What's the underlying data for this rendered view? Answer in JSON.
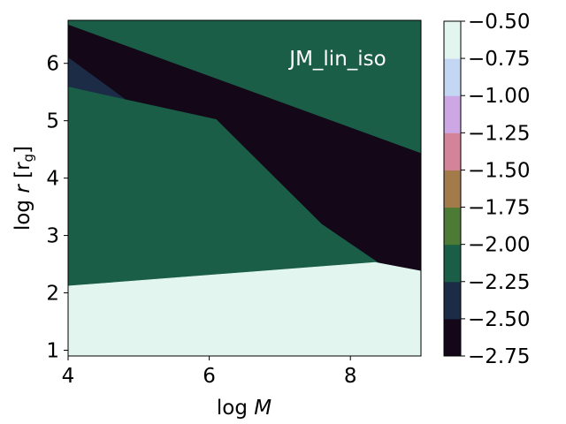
{
  "chart_data": {
    "type": "contour",
    "annotation": "JM_lin_iso",
    "xlabel": {
      "prefix": "log ",
      "var": "M"
    },
    "ylabel": {
      "prefix": "log ",
      "var": "r",
      "unit_open": " [r",
      "unit_sub": "g",
      "unit_close": "]"
    },
    "xlim": [
      4,
      9
    ],
    "ylim": [
      0.9,
      6.75
    ],
    "xticks": [
      4,
      6,
      8
    ],
    "yticks": [
      1,
      2,
      3,
      4,
      5,
      6
    ],
    "xtick_labels": [
      "4",
      "6",
      "8"
    ],
    "ytick_labels": [
      "1",
      "2",
      "3",
      "4",
      "5",
      "6"
    ],
    "colorbar": {
      "levels": [
        -2.75,
        -2.5,
        -2.25,
        -2.0,
        -1.75,
        -1.5,
        -1.25,
        -1.0,
        -0.75,
        -0.5
      ],
      "labels": [
        "−2.75",
        "−2.50",
        "−2.25",
        "−2.00",
        "−1.75",
        "−1.50",
        "−1.25",
        "−1.00",
        "−0.75",
        "−0.50"
      ],
      "colors": [
        "#140818",
        "#1c2c47",
        "#1a5e47",
        "#4d7a34",
        "#a37b4b",
        "#d3849a",
        "#cda7e4",
        "#c3d6f2",
        "#e3f5ef"
      ]
    },
    "regions": [
      {
        "band": "-2.25 to -2.00",
        "color": "#1a5e47",
        "polygon": [
          [
            4,
            0.9
          ],
          [
            9,
            0.9
          ],
          [
            9,
            6.75
          ],
          [
            4,
            6.75
          ]
        ]
      },
      {
        "band": "-2.75 to -2.50",
        "color": "#140818",
        "polygon": [
          [
            4,
            6.67
          ],
          [
            9,
            4.43
          ],
          [
            9,
            2.38
          ],
          [
            8.4,
            2.53
          ],
          [
            7.6,
            3.2
          ],
          [
            6.1,
            5.03
          ],
          [
            4.8,
            5.38
          ],
          [
            4,
            6.1
          ]
        ]
      },
      {
        "band": "-2.50 to -2.25",
        "color": "#1c2c47",
        "polygon": [
          [
            4,
            6.1
          ],
          [
            4.8,
            5.38
          ],
          [
            4,
            5.6
          ]
        ]
      },
      {
        "band": "-0.75 to -0.50",
        "color": "#e3f5ef",
        "polygon": [
          [
            4,
            0.9
          ],
          [
            9,
            0.9
          ],
          [
            9,
            2.38
          ],
          [
            8.35,
            2.53
          ],
          [
            4,
            2.12
          ]
        ]
      }
    ]
  }
}
